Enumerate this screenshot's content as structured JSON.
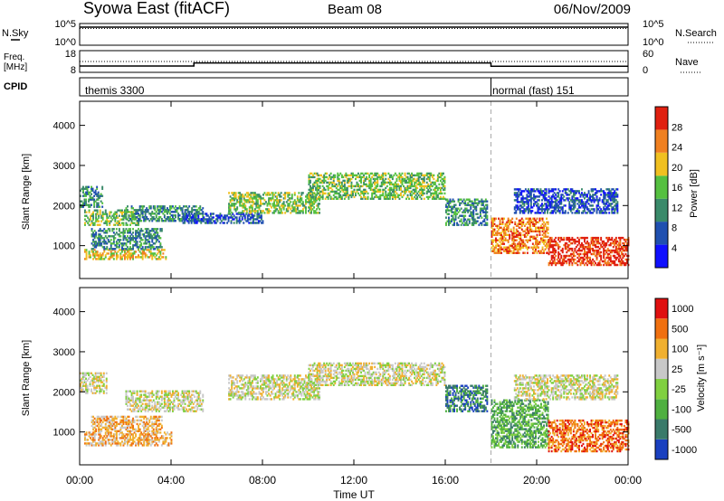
{
  "header": {
    "station": "Syowa East (fitACF)",
    "beam": "Beam 08",
    "date": "06/Nov/2009"
  },
  "strips": {
    "nsky_label": "N.Sky",
    "nsearch_label": "N.Search",
    "noise_top_tick": "10^5",
    "noise_bottom_tick": "10^0",
    "freq_label_1": "Freq.",
    "freq_label_2": "[MHz]",
    "freq_ticks": [
      "18",
      "8"
    ],
    "nave_label": "Nave",
    "nave_ticks": [
      "60",
      "0"
    ],
    "cpid_label": "CPID",
    "cpid_segments": [
      {
        "name": "themis 3300",
        "start_hour": 0,
        "end_hour": 18
      },
      {
        "name": "normal (fast) 151",
        "start_hour": 18,
        "end_hour": 24
      }
    ],
    "freq_data": {
      "segments": [
        {
          "start_hour": 0,
          "end_hour": 5,
          "value": 10.9
        },
        {
          "start_hour": 5,
          "end_hour": 18,
          "value": 12.3
        },
        {
          "start_hour": 18,
          "end_hour": 24,
          "value": 10.8
        }
      ]
    }
  },
  "axes": {
    "ylabel": "Slant Range [km]",
    "xlabel": "Time UT",
    "x_ticks": [
      "00:00",
      "04:00",
      "08:00",
      "12:00",
      "16:00",
      "20:00",
      "00:00"
    ],
    "y_ticks": [
      "1000",
      "2000",
      "3000",
      "4000"
    ]
  },
  "chart_data": [
    {
      "type": "heatmap",
      "name": "power",
      "colorbar_label": "Power [dB]",
      "colorbar_ticks": [
        "4",
        "8",
        "12",
        "16",
        "20",
        "24",
        "28"
      ],
      "colors": [
        "#1010ff",
        "#2050b0",
        "#3a8a6a",
        "#55c040",
        "#f0c020",
        "#f08020",
        "#e02010"
      ],
      "xlim_hours": [
        0,
        24
      ],
      "ylim_km": [
        180,
        4600
      ],
      "bands": [
        {
          "t0": 0.0,
          "t1": 1.0,
          "r0": 1950,
          "r1": 2450,
          "level": 2
        },
        {
          "t0": 0.2,
          "t1": 2.6,
          "r0": 1500,
          "r1": 1900,
          "level": 3
        },
        {
          "t0": 0.2,
          "t1": 3.8,
          "r0": 650,
          "r1": 900,
          "level": 4
        },
        {
          "t0": 0.5,
          "t1": 3.6,
          "r0": 900,
          "r1": 1400,
          "level": 2
        },
        {
          "t0": 2.0,
          "t1": 5.4,
          "r0": 1600,
          "r1": 2000,
          "level": 2
        },
        {
          "t0": 4.5,
          "t1": 8.0,
          "r0": 1550,
          "r1": 1800,
          "level": 1
        },
        {
          "t0": 6.5,
          "t1": 10.5,
          "r0": 1800,
          "r1": 2300,
          "level": 3
        },
        {
          "t0": 10.0,
          "t1": 16.0,
          "r0": 2150,
          "r1": 2800,
          "level": 3
        },
        {
          "t0": 16.0,
          "t1": 17.8,
          "r0": 1500,
          "r1": 2150,
          "level": 2
        },
        {
          "t0": 18.0,
          "t1": 20.5,
          "r0": 800,
          "r1": 1700,
          "level": 5
        },
        {
          "t0": 20.5,
          "t1": 24.0,
          "r0": 500,
          "r1": 1200,
          "level": 6
        },
        {
          "t0": 19.0,
          "t1": 23.5,
          "r0": 1800,
          "r1": 2400,
          "level": 1
        }
      ]
    },
    {
      "type": "heatmap",
      "name": "velocity",
      "colorbar_label": "Velocity [m s⁻¹]",
      "colorbar_ticks": [
        "1000",
        "500",
        "100",
        "25",
        "-25",
        "-100",
        "-500",
        "-1000"
      ],
      "colors": [
        "#1a40c0",
        "#3a7a6a",
        "#4fb040",
        "#80d040",
        "#c8c8c8",
        "#f0b030",
        "#f07010",
        "#e01010"
      ],
      "xlim_hours": [
        0,
        24
      ],
      "ylim_km": [
        180,
        4600
      ],
      "bands": [
        {
          "t0": 0.0,
          "t1": 1.2,
          "r0": 1950,
          "r1": 2450,
          "level": 4
        },
        {
          "t0": 0.2,
          "t1": 4.0,
          "r0": 650,
          "r1": 1000,
          "level": 5
        },
        {
          "t0": 0.5,
          "t1": 3.6,
          "r0": 1000,
          "r1": 1400,
          "level": 5
        },
        {
          "t0": 2.0,
          "t1": 5.4,
          "r0": 1500,
          "r1": 2000,
          "level": 4
        },
        {
          "t0": 6.5,
          "t1": 10.5,
          "r0": 1800,
          "r1": 2400,
          "level": 4
        },
        {
          "t0": 10.0,
          "t1": 16.0,
          "r0": 2150,
          "r1": 2700,
          "level": 4
        },
        {
          "t0": 16.0,
          "t1": 17.8,
          "r0": 1500,
          "r1": 2150,
          "level": 1
        },
        {
          "t0": 18.0,
          "t1": 20.5,
          "r0": 600,
          "r1": 1800,
          "level": 2
        },
        {
          "t0": 20.5,
          "t1": 24.0,
          "r0": 500,
          "r1": 1300,
          "level": 6
        },
        {
          "t0": 19.0,
          "t1": 23.5,
          "r0": 1800,
          "r1": 2400,
          "level": 4
        }
      ]
    }
  ]
}
